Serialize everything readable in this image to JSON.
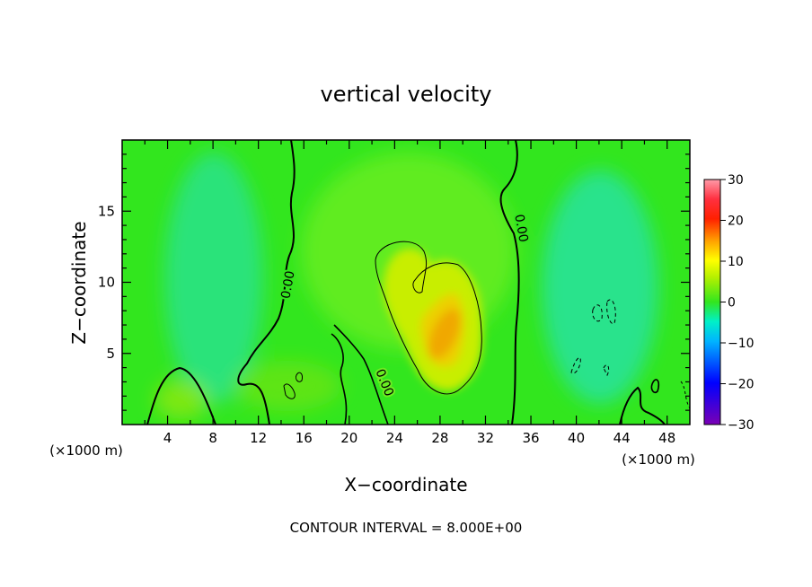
{
  "chart_data": {
    "type": "heatmap",
    "title": "vertical velocity",
    "xlabel": "X−coordinate",
    "ylabel": "Z−coordinate",
    "x_unit_left": "(×1000 m)",
    "x_unit_right": "(×1000 m)",
    "xlim": [
      0,
      50
    ],
    "ylim": [
      0,
      20
    ],
    "x_ticks": [
      4,
      8,
      12,
      16,
      20,
      24,
      28,
      32,
      36,
      40,
      44,
      48
    ],
    "y_ticks": [
      5,
      10,
      15
    ],
    "colorbar": {
      "range": [
        -30,
        30
      ],
      "ticks": [
        30,
        20,
        10,
        0,
        -10,
        -20,
        -30
      ],
      "tick_labels": [
        "30",
        "20",
        "10",
        "0",
        "−10",
        "−20",
        "−30"
      ]
    },
    "contour_labels": [
      "0.00",
      "0.00",
      "0.00"
    ],
    "contour_levels": [
      -8,
      0,
      8
    ],
    "footer": "CONTOUR INTERVAL = 8.000E+00",
    "colors": {
      "background_field": "#32e61e",
      "max_core": "#f0a800",
      "min_core": "#22e0a0"
    }
  }
}
